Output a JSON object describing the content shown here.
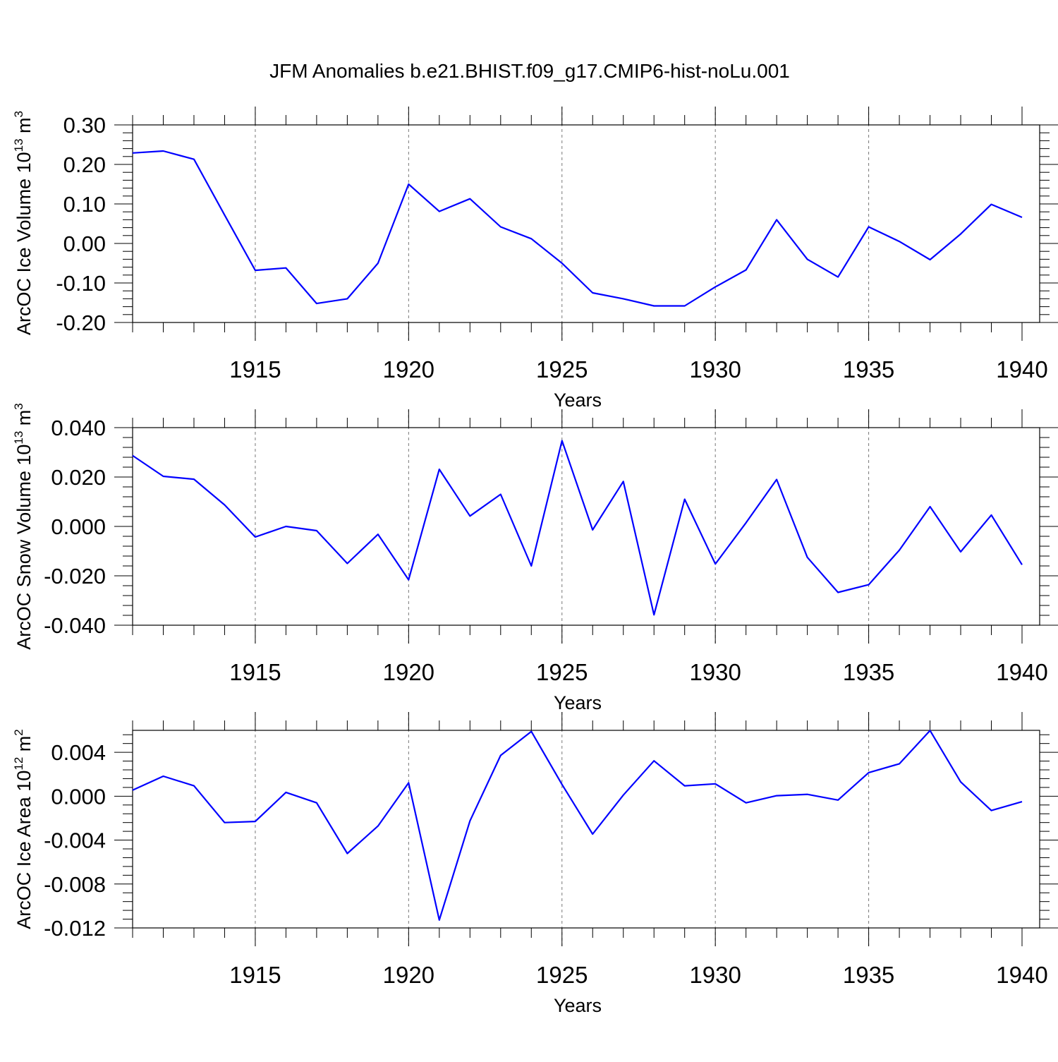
{
  "colors": {
    "series": "#0000ff",
    "axis": "#000000",
    "grid": "#777777"
  },
  "chart_data": [
    {
      "type": "line",
      "title": "JFM Anomalies b.e21.BHIST.f09_g17.CMIP6-hist-noLu.001",
      "ylabel": "ArcOC Ice Volume 10",
      "ylabel_exp": "13",
      "ylabel_unit": "m",
      "ylabel_unit_exp": "3",
      "xlabel": "Years",
      "xlim": [
        1911,
        1940
      ],
      "ylim": [
        -0.2,
        0.3
      ],
      "grid": true,
      "x_ticks": [
        1915,
        1920,
        1925,
        1930,
        1935,
        1940
      ],
      "x_tick_labels": [
        "1915",
        "1920",
        "1925",
        "1930",
        "1935",
        "1940"
      ],
      "y_ticks": [
        -0.2,
        -0.1,
        0.0,
        0.1,
        0.2,
        0.3
      ],
      "y_tick_labels": [
        "-0.20",
        "-0.10",
        "0.00",
        "0.10",
        "0.20",
        "0.30"
      ],
      "x": [
        1911,
        1912,
        1913,
        1914,
        1915,
        1916,
        1917,
        1918,
        1919,
        1920,
        1921,
        1922,
        1923,
        1924,
        1925,
        1926,
        1927,
        1928,
        1929,
        1930,
        1931,
        1932,
        1933,
        1934,
        1935,
        1936,
        1937,
        1938,
        1939,
        1940
      ],
      "series": [
        {
          "values": [
            0.229,
            0.234,
            0.213,
            0.072,
            -0.068,
            -0.062,
            -0.152,
            -0.14,
            -0.05,
            0.15,
            0.081,
            0.113,
            0.042,
            0.012,
            -0.05,
            -0.125,
            -0.14,
            -0.158,
            -0.158,
            -0.11,
            -0.067,
            0.06,
            -0.04,
            -0.085,
            0.042,
            0.005,
            -0.041,
            0.024,
            0.099,
            0.066
          ]
        }
      ]
    },
    {
      "type": "line",
      "ylabel": "ArcOC Snow Volume 10",
      "ylabel_exp": "13",
      "ylabel_unit": "m",
      "ylabel_unit_exp": "3",
      "xlabel": "Years",
      "xlim": [
        1911,
        1940
      ],
      "ylim": [
        -0.04,
        0.04
      ],
      "grid": true,
      "x_ticks": [
        1915,
        1920,
        1925,
        1930,
        1935,
        1940
      ],
      "x_tick_labels": [
        "1915",
        "1920",
        "1925",
        "1930",
        "1935",
        "1940"
      ],
      "y_ticks": [
        -0.04,
        -0.02,
        0.0,
        0.02,
        0.04
      ],
      "y_tick_labels": [
        "-0.040",
        "-0.020",
        "0.000",
        "0.020",
        "0.040"
      ],
      "x": [
        1911,
        1912,
        1913,
        1914,
        1915,
        1916,
        1917,
        1918,
        1919,
        1920,
        1921,
        1922,
        1923,
        1924,
        1925,
        1926,
        1927,
        1928,
        1929,
        1930,
        1931,
        1932,
        1933,
        1934,
        1935,
        1936,
        1937,
        1938,
        1939,
        1940
      ],
      "series": [
        {
          "values": [
            0.0287,
            0.0203,
            0.0191,
            0.0087,
            -0.0043,
            0.0,
            -0.0017,
            -0.015,
            -0.0032,
            -0.0216,
            0.0231,
            0.0042,
            0.013,
            -0.016,
            0.0347,
            -0.0014,
            0.0182,
            -0.0358,
            0.011,
            -0.0152,
            0.0015,
            0.019,
            -0.0125,
            -0.0267,
            -0.0236,
            -0.0096,
            0.008,
            -0.0103,
            0.0046,
            -0.0155
          ]
        }
      ]
    },
    {
      "type": "line",
      "ylabel": "ArcOC Ice Area 10",
      "ylabel_exp": "12",
      "ylabel_unit": "m",
      "ylabel_unit_exp": "2",
      "xlabel": "Years",
      "xlim": [
        1911,
        1940
      ],
      "ylim": [
        -0.012,
        0.006
      ],
      "grid": true,
      "x_ticks": [
        1915,
        1920,
        1925,
        1930,
        1935,
        1940
      ],
      "x_tick_labels": [
        "1915",
        "1920",
        "1925",
        "1930",
        "1935",
        "1940"
      ],
      "y_ticks": [
        -0.012,
        -0.008,
        -0.004,
        0.0,
        0.004
      ],
      "y_tick_labels": [
        "-0.012",
        "-0.008",
        "-0.004",
        "0.000",
        "0.004"
      ],
      "x": [
        1911,
        1912,
        1913,
        1914,
        1915,
        1916,
        1917,
        1918,
        1919,
        1920,
        1921,
        1922,
        1923,
        1924,
        1925,
        1926,
        1927,
        1928,
        1929,
        1930,
        1931,
        1932,
        1933,
        1934,
        1935,
        1936,
        1937,
        1938,
        1939,
        1940
      ],
      "series": [
        {
          "values": [
            0.00055,
            0.00182,
            0.00095,
            -0.0024,
            -0.0023,
            0.00035,
            -0.0006,
            -0.00522,
            -0.00272,
            0.00122,
            -0.01128,
            -0.00225,
            0.00372,
            0.0059,
            0.00107,
            -0.00345,
            0.0001,
            0.00322,
            0.00095,
            0.00113,
            -0.0006,
            5e-05,
            0.00017,
            -0.00035,
            0.00215,
            0.00295,
            0.00598,
            0.0013,
            -0.0013,
            -0.0005
          ]
        }
      ]
    }
  ]
}
